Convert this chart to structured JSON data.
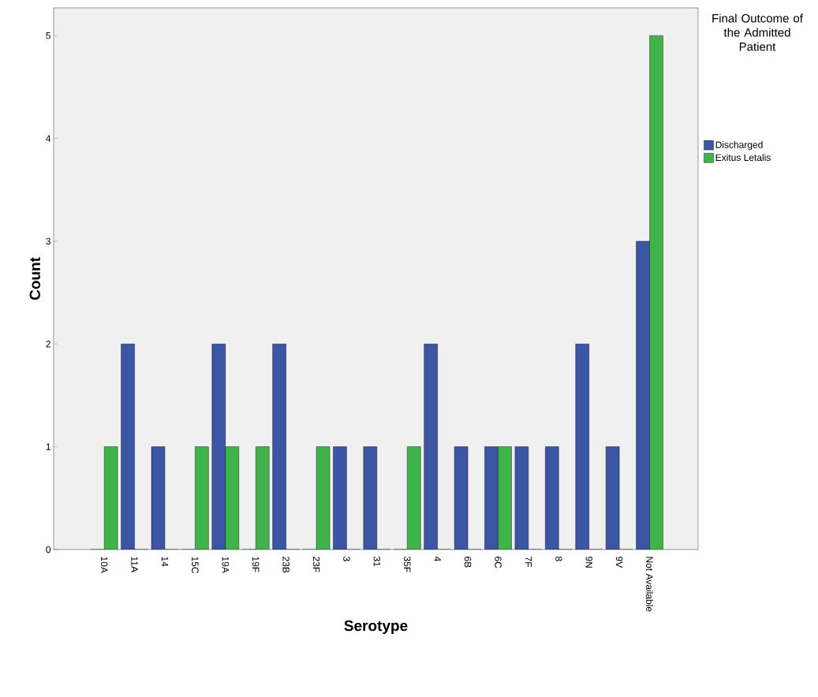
{
  "chart_data": {
    "type": "bar",
    "xlabel": "Serotype",
    "ylabel": "Count",
    "legend_title": "Final Outcome of the Admitted Patient",
    "categories": [
      "10A",
      "11A",
      "14",
      "15C",
      "19A",
      "19F",
      "23B",
      "23F",
      "3",
      "31",
      "35F",
      "4",
      "6B",
      "6C",
      "7F",
      "8",
      "9N",
      "9V",
      "Not Available"
    ],
    "series": [
      {
        "name": "Discharged",
        "color": "#3c56a6",
        "values": [
          0,
          2,
          1,
          0,
          2,
          0,
          2,
          0,
          1,
          1,
          0,
          2,
          1,
          1,
          1,
          1,
          2,
          1,
          3
        ]
      },
      {
        "name": "Exitus Letalis",
        "color": "#3fb449",
        "values": [
          1,
          0,
          0,
          1,
          1,
          1,
          0,
          1,
          0,
          0,
          1,
          0,
          0,
          1,
          0,
          0,
          0,
          0,
          5
        ]
      }
    ],
    "ylim": [
      0,
      5.27
    ],
    "yticks": [
      0,
      1,
      2,
      3,
      4,
      5
    ],
    "grid": false,
    "legend": "right"
  }
}
